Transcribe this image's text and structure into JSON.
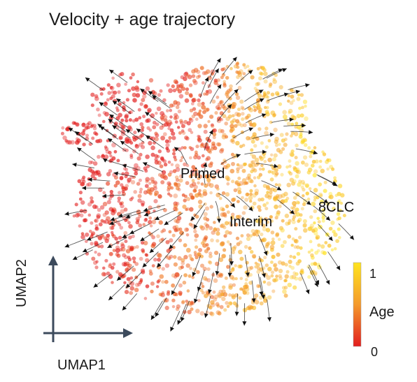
{
  "chart_data": {
    "type": "scatter",
    "title": "Velocity + age trajectory",
    "xlabel": "UMAP1",
    "ylabel": "UMAP2",
    "color_variable": "Age",
    "colorbar": {
      "min": 0,
      "max": 1,
      "tick_labels": [
        "1",
        "0"
      ],
      "colors": [
        "#ffe020",
        "#f6a32a",
        "#e83a22"
      ]
    },
    "overlay": "RNA velocity streamlines with arrowheads",
    "cluster_labels": [
      "Primed",
      "Interim",
      "8CLC"
    ],
    "regions": [
      {
        "name": "Primed",
        "age_range": [
          0.05,
          0.45
        ]
      },
      {
        "name": "Interim",
        "age_range": [
          0.35,
          0.7
        ]
      },
      {
        "name": "8CLC",
        "age_range": [
          0.7,
          1.0
        ]
      }
    ]
  }
}
